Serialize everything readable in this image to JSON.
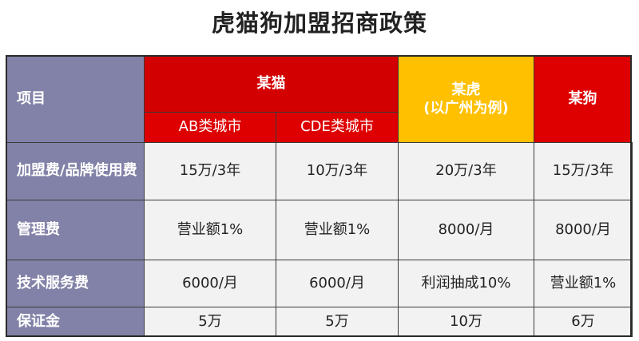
{
  "header": {
    "title": "虎猫狗加盟招商政策"
  },
  "table": {
    "item_label": "项目",
    "brand_a": {
      "name": "某猫",
      "sub": [
        "AB类城市",
        "CDE类城市"
      ]
    },
    "brand_b": {
      "name": "某虎",
      "note": "(以广州为例)"
    },
    "brand_c": {
      "name": "某狗"
    },
    "rows": [
      [
        "加盟费/品牌使用费",
        "15万/3年",
        "10万/3年",
        "20万/3年",
        "15万/3年"
      ],
      [
        "管理费",
        "营业额1%",
        "营业额1%",
        "8000/月",
        "8000/月"
      ],
      [
        "技术服务费",
        "6000/月",
        "6000/月",
        "利润抽成10%",
        "营业额1%"
      ],
      [
        "保证金",
        "5万",
        "5万",
        "10万",
        "6万"
      ]
    ]
  }
}
